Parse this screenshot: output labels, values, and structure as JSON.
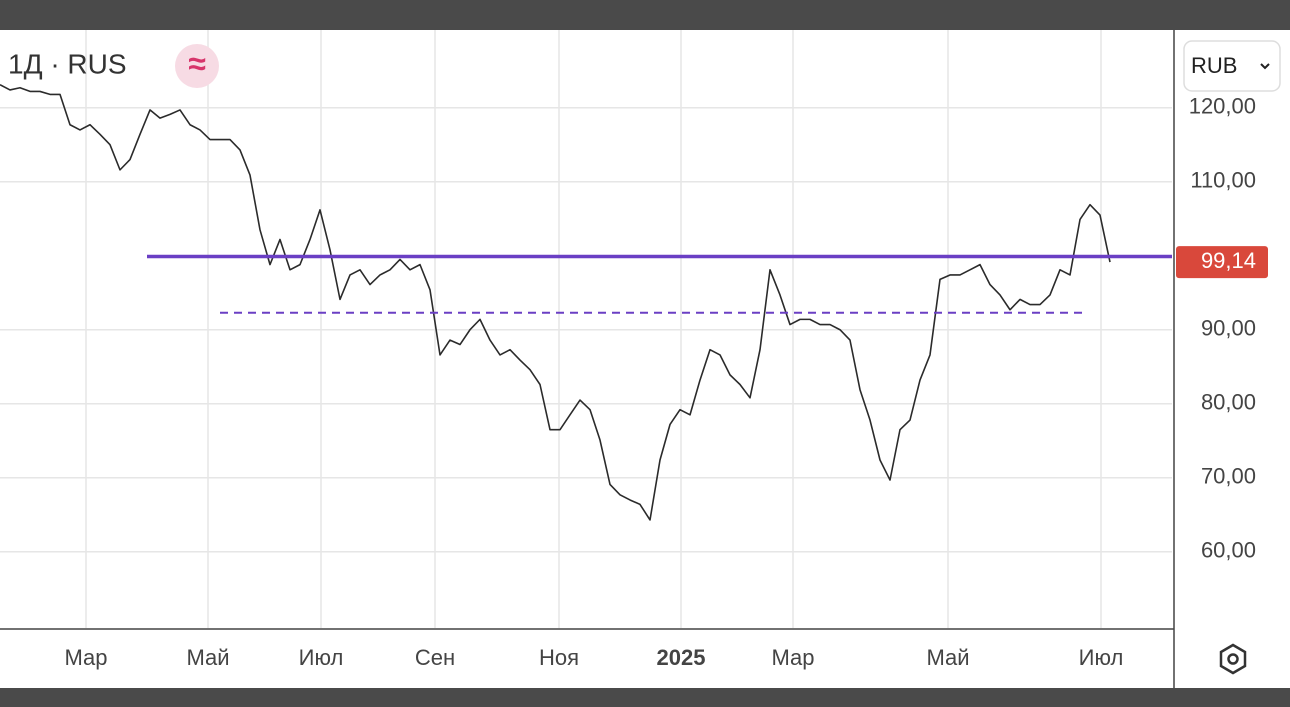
{
  "chart_data": {
    "type": "line",
    "title": "1Д · RUS",
    "currency": "RUB",
    "color": "#2b2b2b",
    "values": [
      123.1,
      122.4,
      122.7,
      122.2,
      122.2,
      121.8,
      121.8,
      117.7,
      117.0,
      117.7,
      116.4,
      115.0,
      111.6,
      113.0,
      116.4,
      119.7,
      118.6,
      119.1,
      119.7,
      117.7,
      117.0,
      115.7,
      115.7,
      115.7,
      114.3,
      110.9,
      103.5,
      98.8,
      102.2,
      98.1,
      98.8,
      102.2,
      106.2,
      100.8,
      94.1,
      97.4,
      98.1,
      96.1,
      97.4,
      98.1,
      99.5,
      98.1,
      98.8,
      95.4,
      86.6,
      88.6,
      88.0,
      90.0,
      91.4,
      88.6,
      86.6,
      87.3,
      85.9,
      84.6,
      82.6,
      76.5,
      76.5,
      78.5,
      80.5,
      79.2,
      75.1,
      69.1,
      67.7,
      67.0,
      66.4,
      64.3,
      72.4,
      77.2,
      79.2,
      78.5,
      83.2,
      87.3,
      86.6,
      83.9,
      82.6,
      80.8,
      87.3,
      98.1,
      94.7,
      90.7,
      91.4,
      91.4,
      90.7,
      90.7,
      90.0,
      88.6,
      81.9,
      77.8,
      72.4,
      69.7,
      76.5,
      77.8,
      83.2,
      86.6,
      96.8,
      97.4,
      97.4,
      98.1,
      98.8,
      96.1,
      94.7,
      92.7,
      94.1,
      93.4,
      93.4,
      94.7,
      98.1,
      97.4,
      104.9,
      106.9,
      105.5,
      99.14
    ],
    "xlim": [
      0,
      117.2
    ],
    "xticks": [
      {
        "value": 8.6,
        "label": "Мар"
      },
      {
        "value": 20.8,
        "label": "Май"
      },
      {
        "value": 32.1,
        "label": "Июл"
      },
      {
        "value": 43.5,
        "label": "Сен"
      },
      {
        "value": 55.9,
        "label": "Ноя"
      },
      {
        "value": 68.1,
        "label": "2025"
      },
      {
        "value": 79.3,
        "label": "Мар"
      },
      {
        "value": 94.8,
        "label": "Май"
      },
      {
        "value": 110.1,
        "label": "Июл"
      }
    ],
    "ylim": [
      49.7,
      130.5
    ],
    "yticks": [
      {
        "value": 60,
        "label": "60,00"
      },
      {
        "value": 70,
        "label": "70,00"
      },
      {
        "value": 80,
        "label": "80,00"
      },
      {
        "value": 90,
        "label": "90,00"
      },
      {
        "value": 110,
        "label": "110,00"
      },
      {
        "value": 120,
        "label": "120,00"
      }
    ],
    "grid": true,
    "last_price": {
      "value": 99.14,
      "label": "99,14",
      "color": "#d9483b"
    },
    "hlines": [
      {
        "value": 99.9,
        "color": "#6a3fc4",
        "style": "solid",
        "start": 14.7,
        "end": 117.2
      },
      {
        "value": 92.3,
        "color": "#6a3fc4",
        "style": "dashed",
        "start": 22,
        "end": 108.5
      }
    ]
  }
}
